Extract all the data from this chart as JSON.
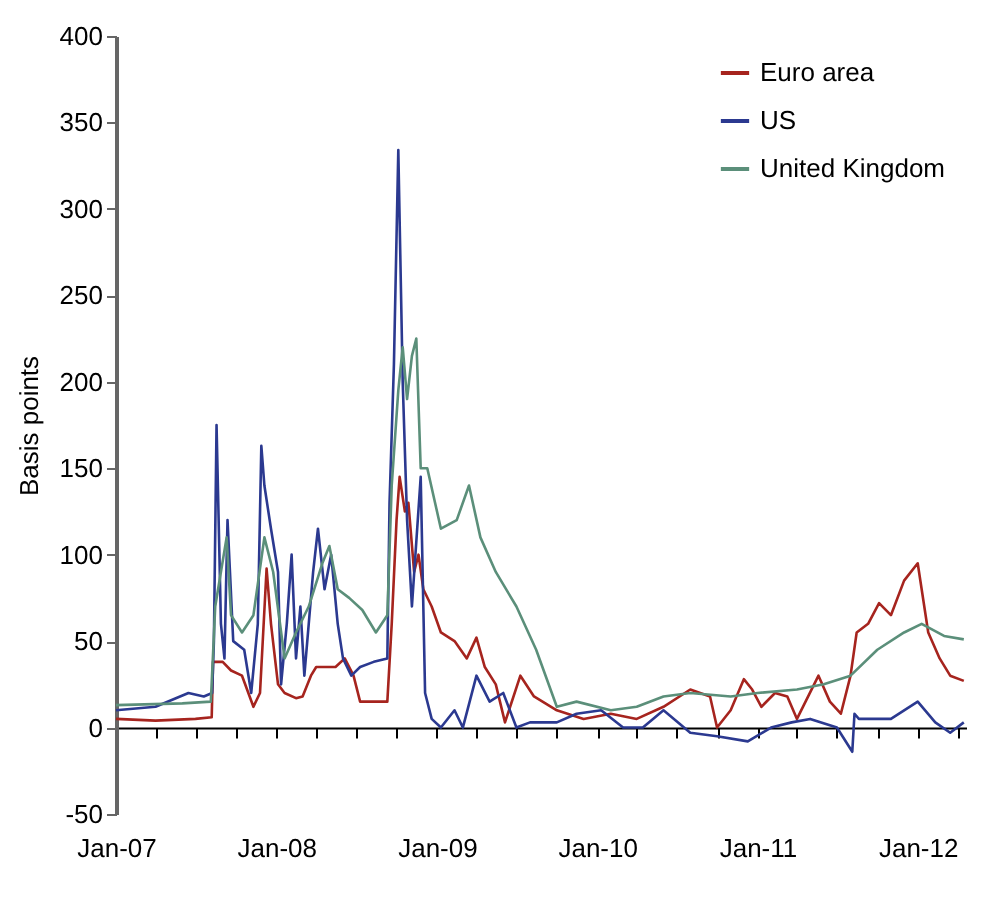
{
  "chart_data": {
    "type": "line",
    "ylabel": "Basis points",
    "legend": "top right",
    "ylim": [
      -50,
      400
    ],
    "yticks": [
      -50,
      0,
      50,
      100,
      150,
      200,
      250,
      300,
      350,
      400
    ],
    "xlim": [
      "2007-01-01",
      "2012-04-20"
    ],
    "xticks": [
      {
        "value": "2007-01",
        "label": "Jan-07"
      },
      {
        "value": "2007-04",
        "label": null
      },
      {
        "value": "2007-07",
        "label": null
      },
      {
        "value": "2007-10",
        "label": null
      },
      {
        "value": "2008-01",
        "label": "Jan-08"
      },
      {
        "value": "2008-04",
        "label": null
      },
      {
        "value": "2008-07",
        "label": null
      },
      {
        "value": "2008-10",
        "label": null
      },
      {
        "value": "2009-01",
        "label": "Jan-09"
      },
      {
        "value": "2009-04",
        "label": null
      },
      {
        "value": "2009-07",
        "label": null
      },
      {
        "value": "2009-10",
        "label": null
      },
      {
        "value": "2010-01",
        "label": "Jan-10"
      },
      {
        "value": "2010-04",
        "label": null
      },
      {
        "value": "2010-07",
        "label": null
      },
      {
        "value": "2010-10",
        "label": null
      },
      {
        "value": "2011-01",
        "label": "Jan-11"
      },
      {
        "value": "2011-04",
        "label": null
      },
      {
        "value": "2011-07",
        "label": null
      },
      {
        "value": "2011-10",
        "label": null
      },
      {
        "value": "2012-01",
        "label": "Jan-12"
      },
      {
        "value": "2012-04",
        "label": null
      }
    ],
    "series": [
      {
        "name": "Euro area",
        "color": "#a6241e",
        "x": [
          "2007-01-01",
          "2007-04-01",
          "2007-07-01",
          "2007-08-07",
          "2007-08-10",
          "2007-09-01",
          "2007-09-20",
          "2007-10-15",
          "2007-11-10",
          "2007-11-25",
          "2007-12-10",
          "2007-12-20",
          "2008-01-05",
          "2008-01-20",
          "2008-02-15",
          "2008-03-01",
          "2008-03-20",
          "2008-04-01",
          "2008-05-15",
          "2008-06-05",
          "2008-06-25",
          "2008-07-10",
          "2008-08-15",
          "2008-09-10",
          "2008-09-20",
          "2008-10-01",
          "2008-10-08",
          "2008-10-20",
          "2008-10-28",
          "2008-11-10",
          "2008-11-20",
          "2008-12-01",
          "2008-12-20",
          "2009-01-10",
          "2009-02-10",
          "2009-03-10",
          "2009-04-01",
          "2009-04-20",
          "2009-05-15",
          "2009-06-05",
          "2009-07-10",
          "2009-08-10",
          "2009-10-01",
          "2009-12-01",
          "2010-02-01",
          "2010-04-01",
          "2010-06-01",
          "2010-08-01",
          "2010-09-15",
          "2010-10-01",
          "2010-11-01",
          "2010-12-01",
          "2010-12-20",
          "2011-01-10",
          "2011-02-10",
          "2011-03-10",
          "2011-04-01",
          "2011-05-20",
          "2011-06-15",
          "2011-07-10",
          "2011-08-01",
          "2011-08-15",
          "2011-09-10",
          "2011-10-05",
          "2011-11-01",
          "2011-12-01",
          "2012-01-01",
          "2012-01-25",
          "2012-02-20",
          "2012-03-15",
          "2012-04-15"
        ],
        "values": [
          5,
          4,
          5,
          6,
          38,
          38,
          33,
          30,
          12,
          20,
          92,
          60,
          25,
          20,
          17,
          18,
          30,
          35,
          35,
          40,
          30,
          15,
          15,
          15,
          60,
          120,
          145,
          125,
          130,
          90,
          100,
          80,
          70,
          55,
          50,
          40,
          52,
          35,
          25,
          3,
          30,
          18,
          10,
          5,
          8,
          5,
          12,
          22,
          18,
          0,
          10,
          28,
          22,
          12,
          20,
          18,
          5,
          30,
          15,
          8,
          30,
          55,
          60,
          72,
          65,
          85,
          95,
          55,
          40,
          30,
          27
        ]
      },
      {
        "name": "US",
        "color": "#2b3990",
        "x": [
          "2007-01-01",
          "2007-04-01",
          "2007-06-15",
          "2007-07-20",
          "2007-08-08",
          "2007-08-12",
          "2007-08-18",
          "2007-08-28",
          "2007-09-05",
          "2007-09-12",
          "2007-09-25",
          "2007-10-20",
          "2007-11-05",
          "2007-11-20",
          "2007-11-28",
          "2007-12-05",
          "2007-12-20",
          "2008-01-05",
          "2008-01-12",
          "2008-01-25",
          "2008-02-05",
          "2008-02-15",
          "2008-02-25",
          "2008-03-05",
          "2008-03-15",
          "2008-03-25",
          "2008-04-05",
          "2008-04-20",
          "2008-05-05",
          "2008-05-20",
          "2008-06-01",
          "2008-06-20",
          "2008-07-10",
          "2008-08-10",
          "2008-09-10",
          "2008-09-15",
          "2008-09-25",
          "2008-10-05",
          "2008-10-15",
          "2008-10-25",
          "2008-11-05",
          "2008-11-25",
          "2008-12-05",
          "2008-12-20",
          "2009-01-10",
          "2009-02-10",
          "2009-03-01",
          "2009-04-01",
          "2009-05-01",
          "2009-06-01",
          "2009-07-01",
          "2009-08-01",
          "2009-10-01",
          "2009-11-15",
          "2010-01-10",
          "2010-03-01",
          "2010-04-15",
          "2010-06-01",
          "2010-08-01",
          "2010-10-01",
          "2010-12-10",
          "2011-02-01",
          "2011-03-20",
          "2011-05-01",
          "2011-07-01",
          "2011-08-05",
          "2011-08-10",
          "2011-08-20",
          "2011-11-01",
          "2012-01-01",
          "2012-02-10",
          "2012-03-15",
          "2012-04-15"
        ],
        "values": [
          10,
          12,
          20,
          18,
          20,
          50,
          175,
          60,
          40,
          120,
          50,
          45,
          20,
          60,
          163,
          140,
          115,
          90,
          25,
          60,
          100,
          40,
          70,
          30,
          60,
          90,
          115,
          80,
          100,
          60,
          40,
          30,
          35,
          38,
          40,
          130,
          210,
          334,
          200,
          120,
          70,
          145,
          20,
          5,
          0,
          10,
          0,
          30,
          15,
          20,
          0,
          3,
          3,
          8,
          10,
          0,
          0,
          10,
          -3,
          -5,
          -8,
          0,
          3,
          5,
          0,
          -14,
          8,
          5,
          5,
          15,
          3,
          -3,
          3
        ]
      },
      {
        "name": "United Kingdom",
        "color": "#5b8f7a",
        "x": [
          "2007-01-01",
          "2007-06-01",
          "2007-08-05",
          "2007-08-15",
          "2007-09-10",
          "2007-09-20",
          "2007-10-15",
          "2007-11-10",
          "2007-12-05",
          "2007-12-25",
          "2008-01-20",
          "2008-02-15",
          "2008-03-15",
          "2008-04-15",
          "2008-05-01",
          "2008-05-20",
          "2008-06-15",
          "2008-07-15",
          "2008-08-15",
          "2008-09-10",
          "2008-09-20",
          "2008-10-05",
          "2008-10-15",
          "2008-10-25",
          "2008-11-05",
          "2008-11-15",
          "2008-11-25",
          "2008-12-10",
          "2009-01-10",
          "2009-02-15",
          "2009-03-15",
          "2009-04-10",
          "2009-05-15",
          "2009-07-01",
          "2009-08-15",
          "2009-10-01",
          "2009-11-15",
          "2010-02-01",
          "2010-04-01",
          "2010-06-01",
          "2010-08-01",
          "2010-11-01",
          "2011-01-01",
          "2011-04-01",
          "2011-06-01",
          "2011-08-01",
          "2011-10-01",
          "2011-12-01",
          "2012-01-10",
          "2012-03-01",
          "2012-04-15"
        ],
        "values": [
          13,
          14,
          15,
          70,
          110,
          65,
          55,
          65,
          110,
          90,
          40,
          55,
          70,
          95,
          105,
          80,
          75,
          68,
          55,
          65,
          140,
          195,
          220,
          190,
          215,
          225,
          150,
          150,
          115,
          120,
          140,
          110,
          90,
          70,
          45,
          12,
          15,
          10,
          12,
          18,
          20,
          18,
          20,
          22,
          25,
          30,
          45,
          55,
          60,
          53,
          51
        ]
      }
    ]
  }
}
